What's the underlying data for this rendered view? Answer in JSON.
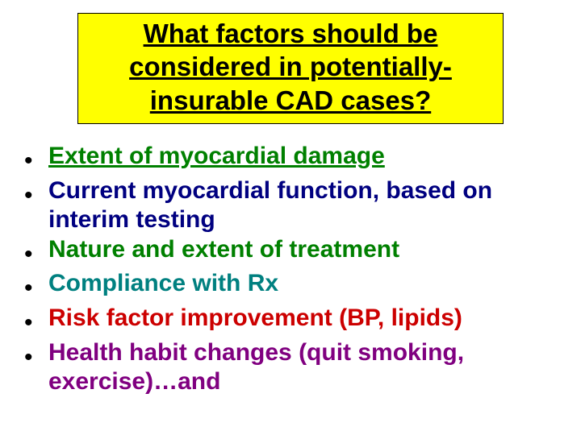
{
  "slide": {
    "background_color": "#ffffff",
    "title": {
      "text": "What factors should be considered in potentially-insurable CAD cases?",
      "box_bg": "#ffff00",
      "box_border": "#000000",
      "font_family": "Arial",
      "font_size_pt": 25,
      "font_weight": "bold",
      "color": "#000000",
      "underline": true,
      "align": "center"
    },
    "bullets": {
      "marker": "•",
      "marker_color": "#000000",
      "font_family": "Comic Sans MS",
      "font_size_pt": 22,
      "font_weight": "bold",
      "items": [
        {
          "text": "Extent of myocardial damage",
          "color": "#008000",
          "underline": true
        },
        {
          "text": "Current myocardial function, based on interim testing",
          "color": "#000080",
          "underline": false
        },
        {
          "text": "Nature and extent of treatment",
          "color": "#008000",
          "underline": false
        },
        {
          "text": "Compliance with Rx",
          "color": "#008080",
          "underline": false
        },
        {
          "text": "Risk factor improvement (BP, lipids)",
          "color": "#cc0000",
          "underline": false
        },
        {
          "text": "Health habit changes (quit smoking, exercise)…and",
          "color": "#800080",
          "underline": false
        }
      ]
    }
  }
}
